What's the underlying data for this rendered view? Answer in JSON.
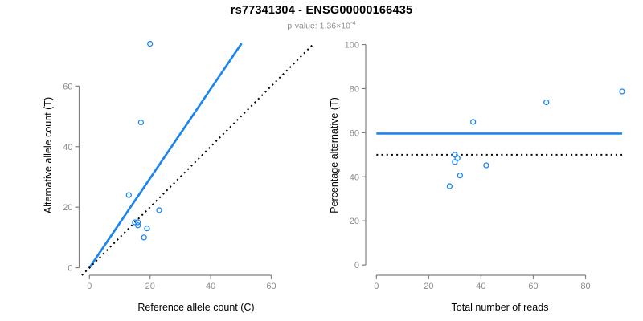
{
  "header": {
    "title": "rs77341304 - ENSG00000166435",
    "subtitle_text": "p-value: 1.36×10",
    "subtitle_exponent": "-4"
  },
  "colors": {
    "accent_blue": "#1C86EE",
    "dotted_line_black": "#000000",
    "axis_gray": "#7f7f7f",
    "tick_label_gray": "#8c8c8c",
    "axis_title_black": "#000000"
  },
  "chart_data": [
    {
      "id": "ref_vs_alt",
      "type": "scatter",
      "xlabel": "Reference allele count (C)",
      "ylabel": "Alternative allele count (T)",
      "x_ticks": [
        0,
        20,
        40,
        60
      ],
      "y_ticks": [
        0,
        20,
        40,
        60
      ],
      "xlim": [
        -3.4,
        73.8
      ],
      "ylim": [
        -2.5,
        76.8
      ],
      "grid": false,
      "legend": "none",
      "points": [
        {
          "x": 13,
          "y": 24
        },
        {
          "x": 15,
          "y": 15
        },
        {
          "x": 16,
          "y": 15
        },
        {
          "x": 16,
          "y": 14
        },
        {
          "x": 17,
          "y": 48
        },
        {
          "x": 18,
          "y": 10
        },
        {
          "x": 19,
          "y": 13
        },
        {
          "x": 20,
          "y": 74
        },
        {
          "x": 23,
          "y": 19
        }
      ],
      "lines": [
        {
          "name": "fitted-ratio-line",
          "style": "solid",
          "color_key": "accent_blue",
          "x1": 0,
          "y1": 0,
          "x2": 50.2,
          "y2": 74.1
        },
        {
          "name": "identity-line",
          "style": "dotted",
          "color_key": "dotted_line_black",
          "x1": -2.5,
          "y1": -2.5,
          "x2": 73.8,
          "y2": 73.8
        }
      ]
    },
    {
      "id": "reads_vs_percentage",
      "type": "scatter",
      "xlabel": "Total number of reads",
      "ylabel": "Percentage alternative (T)",
      "x_ticks": [
        0,
        20,
        40,
        60,
        80
      ],
      "y_ticks": [
        0,
        20,
        40,
        60,
        80,
        100
      ],
      "xlim": [
        -4.1,
        98.6
      ],
      "ylim": [
        -4.7,
        104.2
      ],
      "grid": false,
      "legend": "none",
      "points": [
        {
          "x": 94,
          "y": 78.7
        },
        {
          "x": 65,
          "y": 73.8
        },
        {
          "x": 37,
          "y": 64.9
        },
        {
          "x": 30,
          "y": 50.0
        },
        {
          "x": 31,
          "y": 48.4
        },
        {
          "x": 30,
          "y": 46.7
        },
        {
          "x": 42,
          "y": 45.2
        },
        {
          "x": 32,
          "y": 40.6
        },
        {
          "x": 28,
          "y": 35.7
        }
      ],
      "lines": [
        {
          "name": "fitted-percentage-line",
          "style": "solid",
          "color_key": "accent_blue",
          "x1": 0,
          "y1": 59.6,
          "x2": 94,
          "y2": 59.6
        },
        {
          "name": "expected-50pct-line",
          "style": "dotted",
          "color_key": "dotted_line_black",
          "x1": 0,
          "y1": 50,
          "x2": 94,
          "y2": 50
        }
      ]
    }
  ]
}
